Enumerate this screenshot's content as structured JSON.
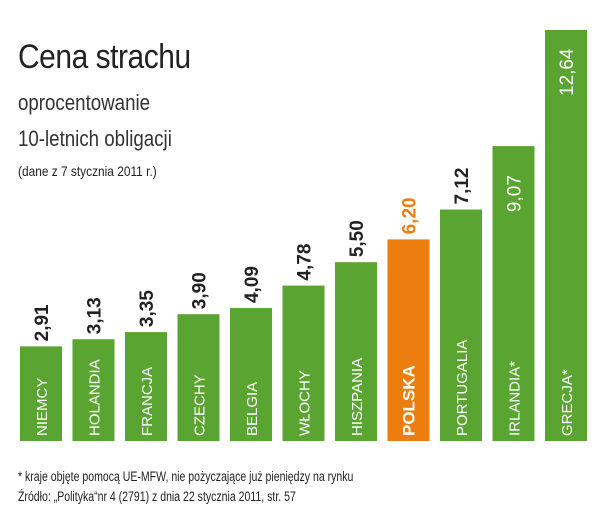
{
  "header": {
    "title": "Cena strachu",
    "subtitle_line1": "oprocentowanie",
    "subtitle_line2": "10-letnich obligacji",
    "date_note": "(dane z 7 stycznia 2011 r.)"
  },
  "footer": {
    "note": "* kraje objęte pomocą UE-MFW, nie pożyczające już pieniędzy na rynku",
    "source": "Źródło: „Polityka“nr 4 (2791) z dnia 22 stycznia 2011, str. 57"
  },
  "colors": {
    "bar": "#5aa532",
    "highlight": "#ee7d0f",
    "highlight_label": "#ee7d0f",
    "value_text": "#222222",
    "category_text": "#ffffff"
  },
  "chart_data": {
    "type": "bar",
    "orientation": "vertical",
    "categories": [
      "NIEMCY",
      "HOLANDIA",
      "FRANCJA",
      "CZECHY",
      "BELGIA",
      "WŁOCHY",
      "HISZPANIA",
      "POLSKA",
      "PORTUGALIA",
      "IRLANDIA*",
      "GRECJA*"
    ],
    "values": [
      2.91,
      3.13,
      3.35,
      3.9,
      4.09,
      4.78,
      5.5,
      6.2,
      7.12,
      9.07,
      12.64
    ],
    "value_labels": [
      "2,91",
      "3,13",
      "3,35",
      "3,90",
      "4,09",
      "4,78",
      "5,50",
      "6,20",
      "7,12",
      "9,07",
      "12,64"
    ],
    "highlight_category": "POLSKA",
    "grid": false,
    "ylim": [
      0,
      12.64
    ]
  }
}
